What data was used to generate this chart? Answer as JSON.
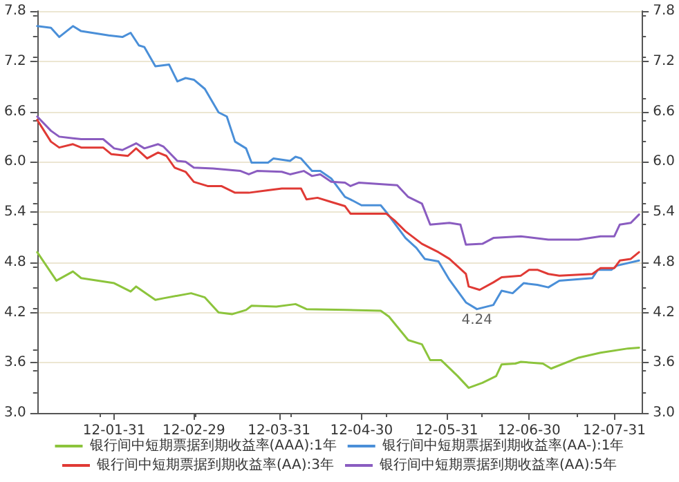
{
  "chart_data": {
    "type": "line",
    "xlim": [
      "--01-03",
      "--08-10"
    ],
    "xticks": [
      {
        "value": "--01-31",
        "label": "12-01-31"
      },
      {
        "value": "--02-29",
        "label": "12-02-29"
      },
      {
        "value": "--03-31",
        "label": "12-03-31"
      },
      {
        "value": "--04-30",
        "label": "12-04-30"
      },
      {
        "value": "--05-31",
        "label": "12-05-31"
      },
      {
        "value": "--06-30",
        "label": "12-06-30"
      },
      {
        "value": "--07-31",
        "label": "12-07-31"
      }
    ],
    "ylim": [
      3,
      7.8
    ],
    "yticks": [
      {
        "value": 3,
        "label": "3.0"
      },
      3.6,
      4.2,
      4.8,
      5.4,
      {
        "value": 6,
        "label": "6.0"
      },
      6.6,
      7.2,
      7.8
    ],
    "y2lim": [
      3,
      7.8
    ],
    "y2ticks": [
      {
        "value": 3,
        "label": "3.0"
      },
      3.6,
      4.2,
      4.8,
      5.4,
      {
        "value": 6,
        "label": "6.0"
      },
      6.6,
      7.2,
      7.8
    ],
    "grid": "y",
    "legend": "bottom",
    "marker": "none",
    "line_style": "solid",
    "annotations": [
      {
        "text": "4.24",
        "x": "--06-11",
        "y": 4.24
      }
    ],
    "series": [
      {
        "name": "银行间中短期票据到期收益率(AAA):1年",
        "color": "#8cc43c",
        "x": [
          "--01-03",
          "--01-10",
          "--01-16",
          "--01-19",
          "--01-31",
          "--02-06",
          "--02-08",
          "--02-15",
          "--02-18",
          "--02-28",
          "--03-04",
          "--03-09",
          "--03-14",
          "--03-19",
          "--03-21",
          "--03-30",
          "--04-06",
          "--04-10",
          "--04-24",
          "--05-07",
          "--05-10",
          "--05-17",
          "--05-22",
          "--05-25",
          "--05-29",
          "--06-04",
          "--06-08",
          "--06-13",
          "--06-18",
          "--06-20",
          "--06-25",
          "--06-27",
          "--07-05",
          "--07-08",
          "--07-18",
          "--07-26",
          "--08-05",
          "--08-09"
        ],
        "values": [
          4.92,
          4.58,
          4.69,
          4.61,
          4.55,
          4.45,
          4.51,
          4.35,
          4.37,
          4.43,
          4.38,
          4.2,
          4.18,
          4.23,
          4.28,
          4.27,
          4.3,
          4.24,
          4.23,
          4.22,
          4.15,
          3.87,
          3.82,
          3.63,
          3.63,
          3.44,
          3.3,
          3.36,
          3.44,
          3.58,
          3.59,
          3.61,
          3.59,
          3.53,
          3.66,
          3.72,
          3.77,
          3.78
        ]
      },
      {
        "name": "银行间中短期票据到期收益率(AA-):1年",
        "color": "#4a8fd8",
        "x": [
          "--01-03",
          "--01-08",
          "--01-11",
          "--01-16",
          "--01-19",
          "--01-29",
          "--02-03",
          "--02-06",
          "--02-09",
          "--02-11",
          "--02-15",
          "--02-20",
          "--02-23",
          "--02-26",
          "--02-29",
          "--03-04",
          "--03-09",
          "--03-12",
          "--03-15",
          "--03-19",
          "--03-21",
          "--03-27",
          "--03-29",
          "--04-04",
          "--04-06",
          "--04-08",
          "--04-12",
          "--04-15",
          "--04-19",
          "--04-24",
          "--04-26",
          "--04-30",
          "--05-07",
          "--05-09",
          "--05-16",
          "--05-20",
          "--05-23",
          "--05-28",
          "--06-01",
          "--06-07",
          "--06-11",
          "--06-17",
          "--06-20",
          "--06-24",
          "--06-28",
          "--07-03",
          "--07-07",
          "--07-11",
          "--07-23",
          "--07-25",
          "--07-30",
          "--08-01",
          "--08-09"
        ],
        "values": [
          7.62,
          7.6,
          7.49,
          7.62,
          7.56,
          7.51,
          7.49,
          7.54,
          7.39,
          7.37,
          7.14,
          7.16,
          6.96,
          7.0,
          6.98,
          6.87,
          6.59,
          6.54,
          6.24,
          6.16,
          5.99,
          5.99,
          6.04,
          6.01,
          6.06,
          6.04,
          5.89,
          5.89,
          5.8,
          5.58,
          5.55,
          5.48,
          5.48,
          5.4,
          5.09,
          4.97,
          4.84,
          4.81,
          4.59,
          4.32,
          4.24,
          4.29,
          4.46,
          4.43,
          4.55,
          4.53,
          4.5,
          4.58,
          4.61,
          4.71,
          4.71,
          4.76,
          4.82
        ]
      },
      {
        "name": "银行间中短期票据到期收益率(AA):3年",
        "color": "#e03a35",
        "x": [
          "--01-03",
          "--01-08",
          "--01-11",
          "--01-16",
          "--01-19",
          "--01-27",
          "--01-30",
          "--02-05",
          "--02-08",
          "--02-12",
          "--02-16",
          "--02-19",
          "--02-22",
          "--02-26",
          "--02-29",
          "--03-05",
          "--03-10",
          "--03-15",
          "--03-20",
          "--03-27",
          "--04-01",
          "--04-08",
          "--04-10",
          "--04-14",
          "--04-19",
          "--04-24",
          "--04-26",
          "--05-09",
          "--05-12",
          "--05-16",
          "--05-22",
          "--05-28",
          "--06-01",
          "--06-07",
          "--06-08",
          "--06-12",
          "--06-17",
          "--06-20",
          "--06-27",
          "--06-30",
          "--07-03",
          "--07-07",
          "--07-11",
          "--07-23",
          "--07-26",
          "--07-31",
          "--08-02",
          "--08-06",
          "--08-09"
        ],
        "values": [
          6.5,
          6.24,
          6.17,
          6.21,
          6.17,
          6.17,
          6.09,
          6.07,
          6.16,
          6.04,
          6.11,
          6.07,
          5.93,
          5.88,
          5.76,
          5.71,
          5.71,
          5.63,
          5.63,
          5.66,
          5.68,
          5.68,
          5.55,
          5.57,
          5.52,
          5.47,
          5.38,
          5.38,
          5.3,
          5.17,
          5.02,
          4.92,
          4.84,
          4.66,
          4.51,
          4.47,
          4.56,
          4.62,
          4.64,
          4.71,
          4.71,
          4.66,
          4.64,
          4.66,
          4.73,
          4.73,
          4.82,
          4.84,
          4.92
        ]
      },
      {
        "name": "银行间中短期票据到期收益率(AA):5年",
        "color": "#8a5cc0",
        "x": [
          "--01-03",
          "--01-08",
          "--01-11",
          "--01-16",
          "--01-19",
          "--01-27",
          "--01-31",
          "--02-03",
          "--02-08",
          "--02-11",
          "--02-16",
          "--02-18",
          "--02-23",
          "--02-26",
          "--02-29",
          "--03-07",
          "--03-17",
          "--03-20",
          "--03-23",
          "--04-01",
          "--04-04",
          "--04-09",
          "--04-12",
          "--04-15",
          "--04-19",
          "--04-24",
          "--04-26",
          "--04-29",
          "--05-13",
          "--05-17",
          "--05-22",
          "--05-25",
          "--06-01",
          "--06-05",
          "--06-07",
          "--06-13",
          "--06-17",
          "--06-27",
          "--07-07",
          "--07-18",
          "--07-26",
          "--07-31",
          "--08-02",
          "--08-06",
          "--08-09"
        ],
        "values": [
          6.54,
          6.37,
          6.3,
          6.28,
          6.27,
          6.27,
          6.16,
          6.14,
          6.22,
          6.16,
          6.21,
          6.18,
          6.01,
          6.0,
          5.93,
          5.92,
          5.89,
          5.85,
          5.89,
          5.88,
          5.85,
          5.89,
          5.83,
          5.85,
          5.76,
          5.75,
          5.71,
          5.75,
          5.72,
          5.58,
          5.5,
          5.25,
          5.27,
          5.25,
          5.01,
          5.02,
          5.09,
          5.11,
          5.07,
          5.07,
          5.11,
          5.11,
          5.25,
          5.27,
          5.37
        ]
      }
    ]
  }
}
